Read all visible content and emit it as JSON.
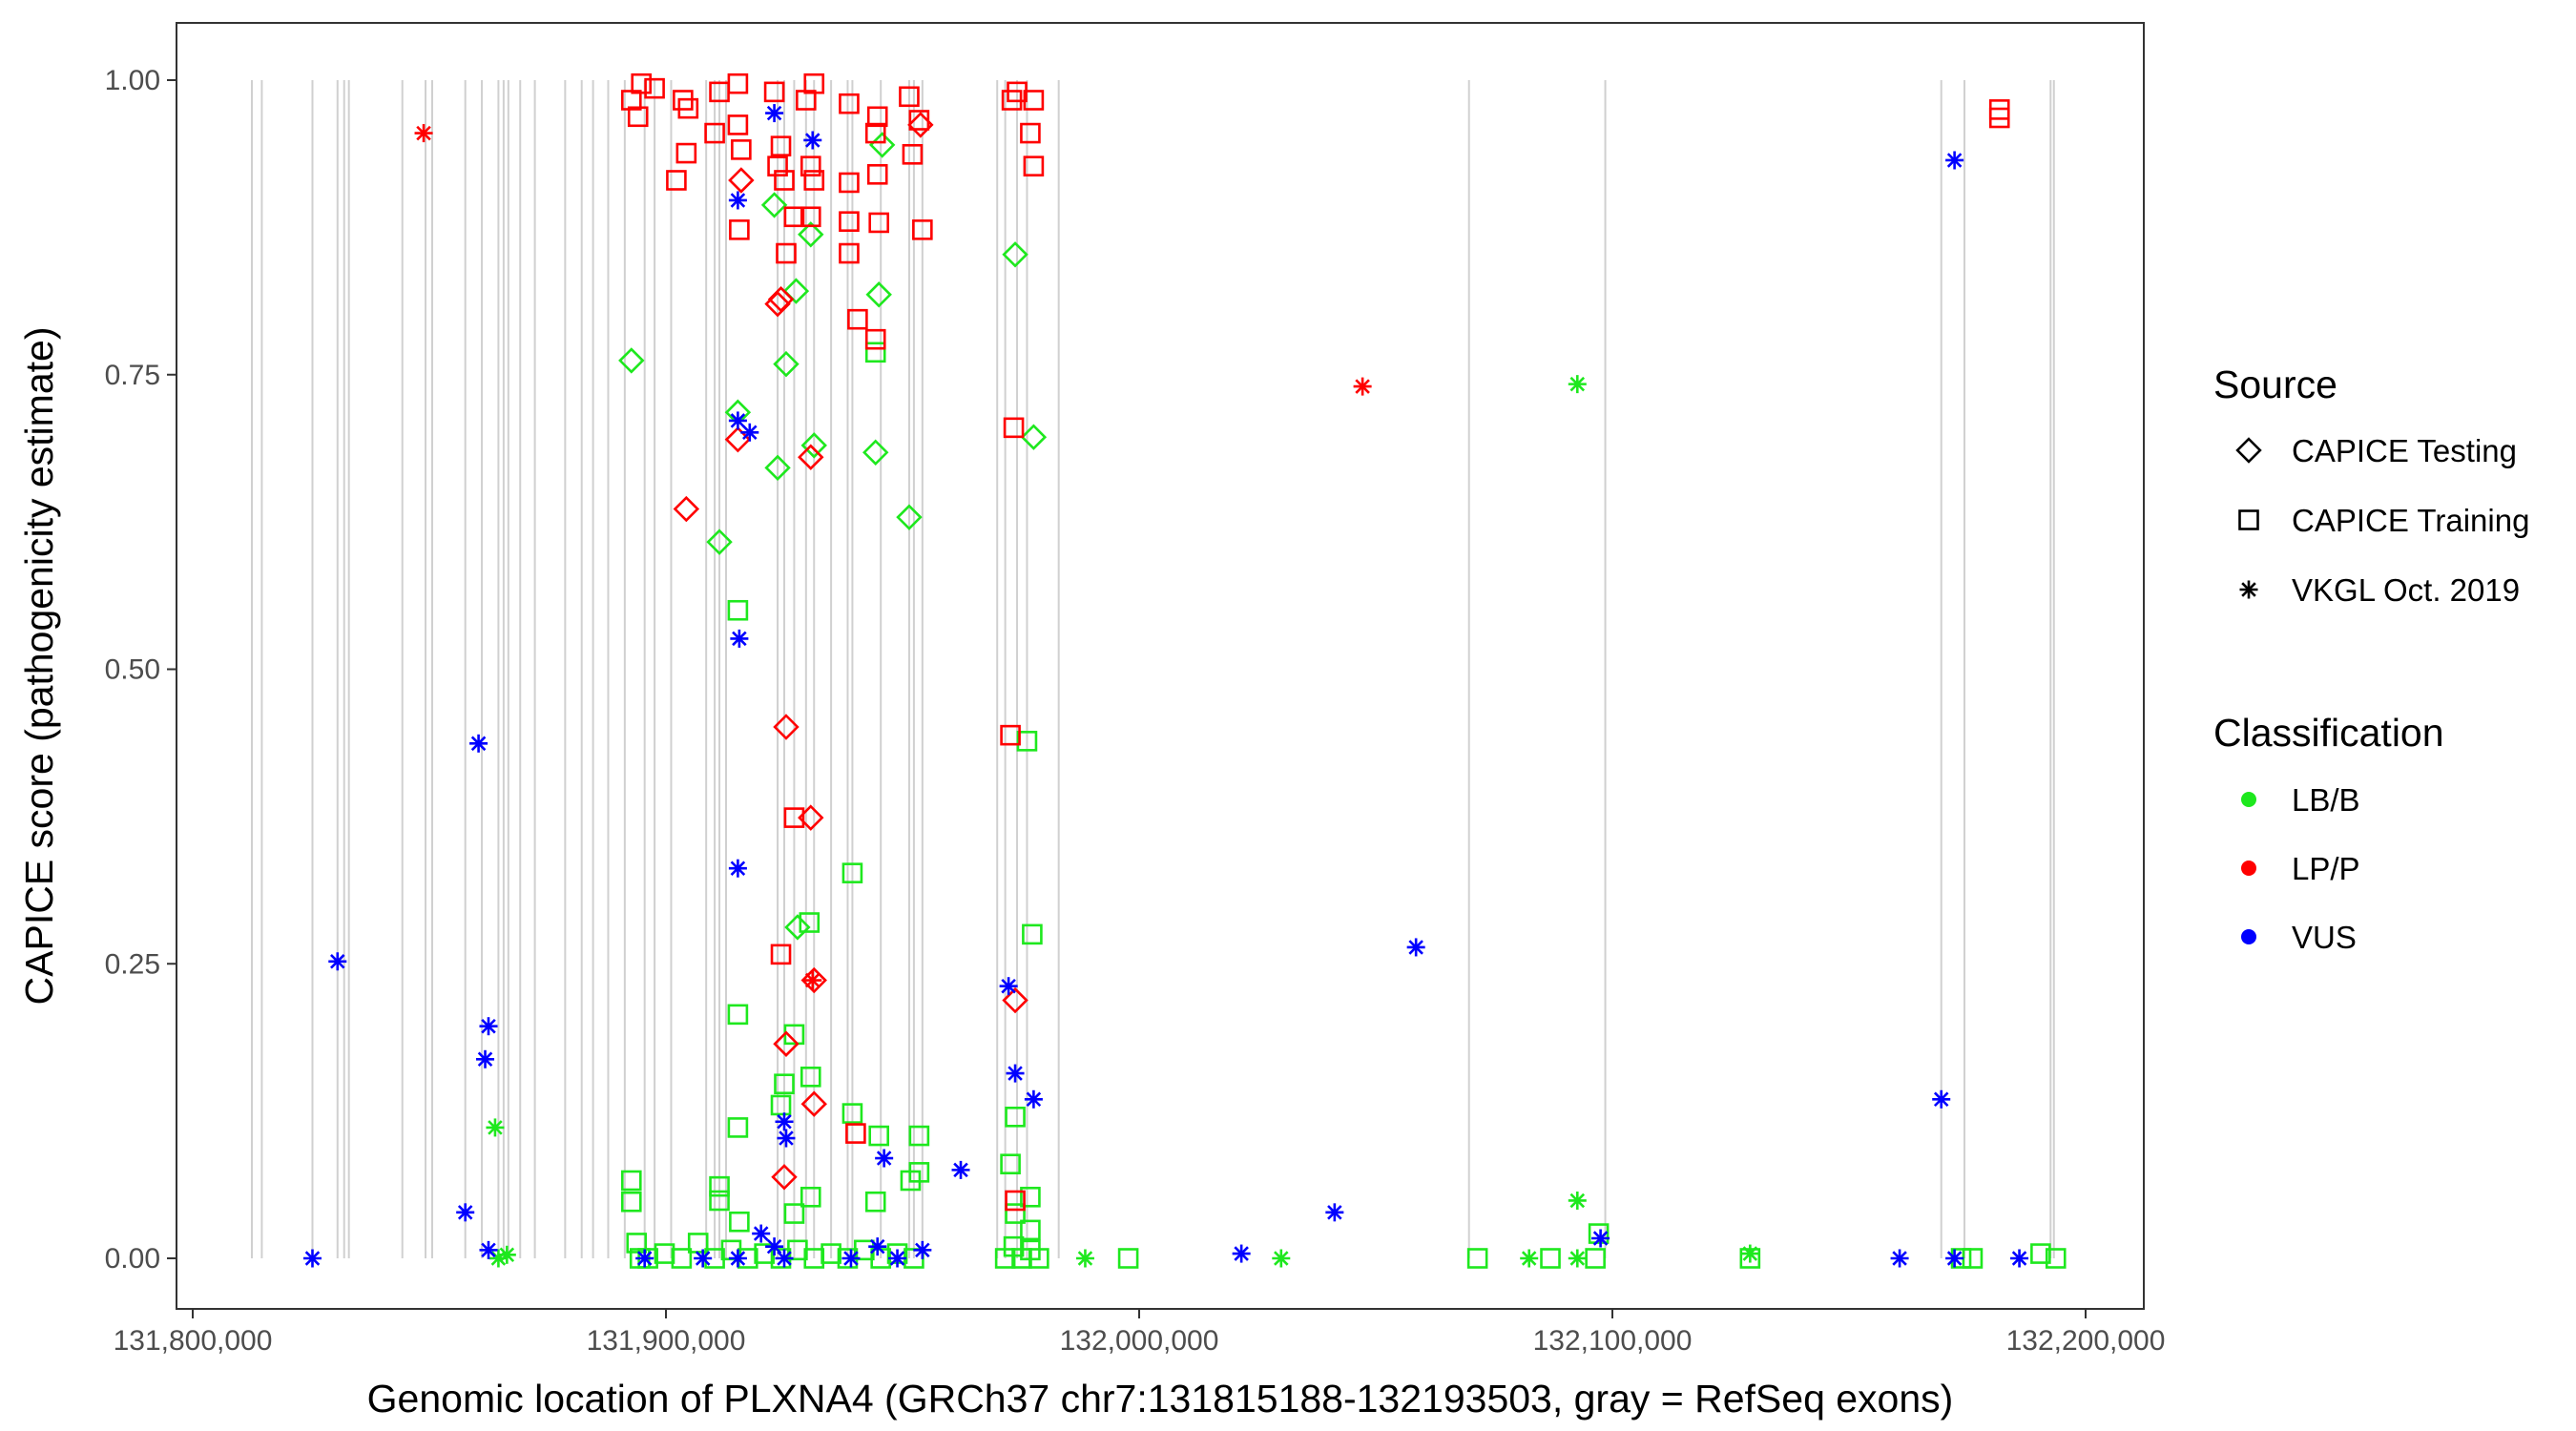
{
  "chart_data": {
    "type": "scatter",
    "title": "",
    "xlabel": "Genomic location of PLXNA4 (GRCh37 chr7:131815188-132193503, gray = RefSeq exons)",
    "ylabel": "CAPICE score (pathogenicity estimate)",
    "xlim": [
      131797000,
      132211000
    ],
    "ylim": [
      -0.045,
      1.048
    ],
    "x_ticks": [
      131800000,
      131900000,
      132000000,
      132100000,
      132200000
    ],
    "x_tick_labels": [
      "131,800,000",
      "131,900,000",
      "132,000,000",
      "132,100,000",
      "132,200,000"
    ],
    "y_ticks": [
      0,
      0.25,
      0.5,
      0.75,
      1.0
    ],
    "y_tick_labels": [
      "0.00",
      "0.25",
      "0.50",
      "0.75",
      "1.00"
    ],
    "grid": false,
    "legend": {
      "placement": "right",
      "source_title": "Source",
      "source_items": [
        "CAPICE Testing",
        "CAPICE Training",
        "VKGL Oct. 2019"
      ],
      "source_shapes": [
        "diamond",
        "square",
        "asterisk"
      ],
      "class_title": "Classification",
      "class_items": [
        "LB/B",
        "LP/P",
        "VUS"
      ],
      "class_colors": [
        "#1ee81e",
        "#ff0000",
        "#0000ff"
      ]
    },
    "exons_kb": [
      131812.5,
      131814.6,
      131825.3,
      131830.6,
      131832.0,
      131833.0,
      131844.3,
      131849.2,
      131850.6,
      131857.6,
      131861.1,
      131864.6,
      131865.7,
      131866.7,
      131869.2,
      131872.3,
      131878.7,
      131882.2,
      131884.6,
      131887.8,
      131891.3,
      131895.5,
      131897.6,
      131901.1,
      131908.5,
      131910.3,
      131911.3,
      131912.7,
      131923.6,
      131925.0,
      131927.1,
      131929.6,
      131931.3,
      131934.9,
      131938.4,
      131939.4,
      131945.4,
      131951.4,
      131952.4,
      131954.2,
      131970.0,
      131971.7,
      131974.2,
      131976.3,
      131983.0,
      132069.7,
      132098.5,
      132169.5,
      132174.4,
      132192.6,
      132193.3
    ],
    "point_fields": [
      "x_kb",
      "y",
      "source_index",
      "class_index"
    ],
    "points": [
      [
        131825.3,
        0,
        2,
        2
      ],
      [
        131830.6,
        0.252,
        2,
        2
      ],
      [
        131860.4,
        0.437,
        2,
        2
      ],
      [
        131862.5,
        0.197,
        2,
        2
      ],
      [
        131861.8,
        0.169,
        2,
        2
      ],
      [
        131857.6,
        0.039,
        2,
        2
      ],
      [
        131862.5,
        0.007,
        2,
        2
      ],
      [
        131895.5,
        0,
        2,
        2
      ],
      [
        131907.8,
        0,
        2,
        2
      ],
      [
        131915.2,
        0,
        2,
        2
      ],
      [
        131915.2,
        0.898,
        2,
        2
      ],
      [
        131915.2,
        0.331,
        2,
        2
      ],
      [
        131915.5,
        0.526,
        2,
        2
      ],
      [
        131915.2,
        0.711,
        2,
        2
      ],
      [
        131917.7,
        0.701,
        2,
        2
      ],
      [
        131922.9,
        0.972,
        2,
        2
      ],
      [
        131931.0,
        0.949,
        2,
        2
      ],
      [
        131925.0,
        0.116,
        2,
        2
      ],
      [
        131925.4,
        0.102,
        2,
        2
      ],
      [
        131920.1,
        0.021,
        2,
        2
      ],
      [
        131922.9,
        0.01,
        2,
        2
      ],
      [
        131925.0,
        0,
        2,
        2
      ],
      [
        131939.1,
        0,
        2,
        2
      ],
      [
        131948.9,
        0,
        2,
        2
      ],
      [
        131944.7,
        0.01,
        2,
        2
      ],
      [
        131946.1,
        0.085,
        2,
        2
      ],
      [
        131954.2,
        0.007,
        2,
        2
      ],
      [
        131962.3,
        0.075,
        2,
        2
      ],
      [
        131972.4,
        0.231,
        2,
        2
      ],
      [
        131973.8,
        0.157,
        2,
        2
      ],
      [
        131977.7,
        0.135,
        2,
        2
      ],
      [
        132021.6,
        0.004,
        2,
        2
      ],
      [
        132041.3,
        0.039,
        2,
        2
      ],
      [
        132058.5,
        0.264,
        2,
        2
      ],
      [
        132097.5,
        0.017,
        2,
        2
      ],
      [
        132160.7,
        0,
        2,
        2
      ],
      [
        132169.5,
        0.135,
        2,
        2
      ],
      [
        132172.3,
        0.932,
        2,
        2
      ],
      [
        132172.3,
        0,
        2,
        2
      ],
      [
        132186.0,
        0,
        2,
        2
      ],
      [
        131848.8,
        0.955,
        2,
        1
      ],
      [
        132047.2,
        0.74,
        2,
        1
      ],
      [
        131931.0,
        0.236,
        2,
        1
      ],
      [
        131863.9,
        0.111,
        2,
        0
      ],
      [
        132092.6,
        0.742,
        2,
        0
      ],
      [
        132092.6,
        0.049,
        2,
        0
      ],
      [
        131988.6,
        0,
        2,
        0
      ],
      [
        132030.0,
        0,
        2,
        0
      ],
      [
        132082.4,
        0,
        2,
        0
      ],
      [
        132129.1,
        0.004,
        2,
        0
      ],
      [
        131864.6,
        0,
        2,
        0
      ],
      [
        131866.4,
        0.003,
        2,
        0
      ],
      [
        132092.6,
        0,
        2,
        0
      ],
      [
        131892.7,
        0.762,
        0,
        0
      ],
      [
        131911.3,
        0.608,
        0,
        0
      ],
      [
        131915.2,
        0.718,
        0,
        0
      ],
      [
        131922.9,
        0.894,
        0,
        0
      ],
      [
        131923.6,
        0.671,
        0,
        0
      ],
      [
        131925.4,
        0.759,
        0,
        0
      ],
      [
        131927.5,
        0.821,
        0,
        0
      ],
      [
        131930.6,
        0.869,
        0,
        0
      ],
      [
        131931.3,
        0.69,
        0,
        0
      ],
      [
        131944.3,
        0.684,
        0,
        0
      ],
      [
        131945.0,
        0.818,
        0,
        0
      ],
      [
        131951.4,
        0.629,
        0,
        0
      ],
      [
        131973.8,
        0.852,
        0,
        0
      ],
      [
        131977.7,
        0.697,
        0,
        0
      ],
      [
        131927.8,
        0.281,
        0,
        0
      ],
      [
        131945.7,
        0.945,
        0,
        0
      ],
      [
        131904.3,
        0.636,
        0,
        1
      ],
      [
        131915.9,
        0.915,
        0,
        1
      ],
      [
        131915.2,
        0.695,
        0,
        1
      ],
      [
        131923.6,
        0.81,
        0,
        1
      ],
      [
        131924.3,
        0.814,
        0,
        1
      ],
      [
        131925.4,
        0.451,
        0,
        1
      ],
      [
        131930.6,
        0.374,
        0,
        1
      ],
      [
        131930.6,
        0.68,
        0,
        1
      ],
      [
        131925.4,
        0.182,
        0,
        1
      ],
      [
        131931.3,
        0.131,
        0,
        1
      ],
      [
        131973.8,
        0.219,
        0,
        1
      ],
      [
        131931.3,
        0.236,
        0,
        1
      ],
      [
        131953.8,
        0.962,
        0,
        1
      ],
      [
        131925.0,
        0.069,
        0,
        1
      ],
      [
        131892.7,
        0.983,
        1,
        1
      ],
      [
        131894.1,
        0.969,
        1,
        1
      ],
      [
        131894.8,
        0.997,
        1,
        1
      ],
      [
        131897.6,
        0.993,
        1,
        1
      ],
      [
        131903.6,
        0.983,
        1,
        1
      ],
      [
        131904.7,
        0.976,
        1,
        1
      ],
      [
        131902.2,
        0.915,
        1,
        1
      ],
      [
        131904.3,
        0.938,
        1,
        1
      ],
      [
        131910.3,
        0.955,
        1,
        1
      ],
      [
        131911.3,
        0.99,
        1,
        1
      ],
      [
        131915.2,
        0.997,
        1,
        1
      ],
      [
        131915.2,
        0.962,
        1,
        1
      ],
      [
        131915.5,
        0.873,
        1,
        1
      ],
      [
        131915.9,
        0.941,
        1,
        1
      ],
      [
        131922.9,
        0.99,
        1,
        1
      ],
      [
        131923.6,
        0.927,
        1,
        1
      ],
      [
        131924.3,
        0.944,
        1,
        1
      ],
      [
        131925.0,
        0.915,
        1,
        1
      ],
      [
        131925.4,
        0.853,
        1,
        1
      ],
      [
        131927.1,
        0.884,
        1,
        1
      ],
      [
        131929.6,
        0.983,
        1,
        1
      ],
      [
        131930.6,
        0.927,
        1,
        1
      ],
      [
        131930.6,
        0.884,
        1,
        1
      ],
      [
        131931.3,
        0.997,
        1,
        1
      ],
      [
        131931.3,
        0.915,
        1,
        1
      ],
      [
        131938.7,
        0.98,
        1,
        1
      ],
      [
        131938.7,
        0.913,
        1,
        1
      ],
      [
        131938.7,
        0.88,
        1,
        1
      ],
      [
        131938.7,
        0.853,
        1,
        1
      ],
      [
        131940.5,
        0.797,
        1,
        1
      ],
      [
        131944.7,
        0.969,
        1,
        1
      ],
      [
        131944.3,
        0.955,
        1,
        1
      ],
      [
        131944.7,
        0.92,
        1,
        1
      ],
      [
        131945.0,
        0.879,
        1,
        1
      ],
      [
        131944.3,
        0.78,
        1,
        1
      ],
      [
        131951.4,
        0.986,
        1,
        1
      ],
      [
        131952.1,
        0.937,
        1,
        1
      ],
      [
        131953.5,
        0.966,
        1,
        1
      ],
      [
        131954.2,
        0.873,
        1,
        1
      ],
      [
        131973.1,
        0.983,
        1,
        1
      ],
      [
        131974.2,
        0.99,
        1,
        1
      ],
      [
        131977.0,
        0.955,
        1,
        1
      ],
      [
        131977.7,
        0.927,
        1,
        1
      ],
      [
        131977.7,
        0.983,
        1,
        1
      ],
      [
        131973.5,
        0.705,
        1,
        1
      ],
      [
        131972.8,
        0.444,
        1,
        1
      ],
      [
        131927.1,
        0.374,
        1,
        1
      ],
      [
        131924.3,
        0.258,
        1,
        1
      ],
      [
        131940.1,
        0.106,
        1,
        1
      ],
      [
        132181.8,
        0.975,
        1,
        1
      ],
      [
        132181.8,
        0.968,
        1,
        1
      ],
      [
        131973.8,
        0.049,
        1,
        1
      ],
      [
        131892.7,
        0.066,
        1,
        0
      ],
      [
        131892.7,
        0.048,
        1,
        0
      ],
      [
        131893.8,
        0.013,
        1,
        0
      ],
      [
        131894.5,
        0,
        1,
        0
      ],
      [
        131915.2,
        0.55,
        1,
        0
      ],
      [
        131915.2,
        0.111,
        1,
        0
      ],
      [
        131915.2,
        0.207,
        1,
        0
      ],
      [
        131911.3,
        0.061,
        1,
        0
      ],
      [
        131911.3,
        0.049,
        1,
        0
      ],
      [
        131915.5,
        0.031,
        1,
        0
      ],
      [
        131924.3,
        0.13,
        1,
        0
      ],
      [
        131925.0,
        0.148,
        1,
        0
      ],
      [
        131927.1,
        0.19,
        1,
        0
      ],
      [
        131930.3,
        0.285,
        1,
        0
      ],
      [
        131930.6,
        0.154,
        1,
        0
      ],
      [
        131939.4,
        0.327,
        1,
        0
      ],
      [
        131939.4,
        0.123,
        1,
        0
      ],
      [
        131945.0,
        0.104,
        1,
        0
      ],
      [
        131953.5,
        0.104,
        1,
        0
      ],
      [
        131951.7,
        0.066,
        1,
        0
      ],
      [
        131953.5,
        0.073,
        1,
        0
      ],
      [
        131977.4,
        0.275,
        1,
        0
      ],
      [
        131976.3,
        0.439,
        1,
        0
      ],
      [
        131973.8,
        0.12,
        1,
        0
      ],
      [
        131972.8,
        0.08,
        1,
        0
      ],
      [
        131944.3,
        0.769,
        1,
        0
      ],
      [
        131930.6,
        0.052,
        1,
        0
      ],
      [
        131927.1,
        0.038,
        1,
        0
      ],
      [
        131944.3,
        0.048,
        1,
        0
      ],
      [
        131973.8,
        0.038,
        1,
        0
      ],
      [
        131977.0,
        0.052,
        1,
        0
      ],
      [
        131977.0,
        0.024,
        1,
        0
      ],
      [
        131896.2,
        0,
        1,
        0
      ],
      [
        131899.7,
        0.004,
        1,
        0
      ],
      [
        131903.3,
        0,
        1,
        0
      ],
      [
        131906.8,
        0.013,
        1,
        0
      ],
      [
        131910.3,
        0,
        1,
        0
      ],
      [
        131913.8,
        0.007,
        1,
        0
      ],
      [
        131917.3,
        0,
        1,
        0
      ],
      [
        131920.8,
        0.004,
        1,
        0
      ],
      [
        131924.3,
        0,
        1,
        0
      ],
      [
        131927.8,
        0.007,
        1,
        0
      ],
      [
        131931.3,
        0,
        1,
        0
      ],
      [
        131934.9,
        0.004,
        1,
        0
      ],
      [
        131938.4,
        0,
        1,
        0
      ],
      [
        131941.9,
        0.007,
        1,
        0
      ],
      [
        131945.4,
        0,
        1,
        0
      ],
      [
        131948.9,
        0.004,
        1,
        0
      ],
      [
        131952.4,
        0,
        1,
        0
      ],
      [
        131971.7,
        0,
        1,
        0
      ],
      [
        131973.5,
        0.01,
        1,
        0
      ],
      [
        131975.2,
        0,
        1,
        0
      ],
      [
        131977.0,
        0.007,
        1,
        0
      ],
      [
        131978.8,
        0,
        1,
        0
      ],
      [
        131997.7,
        0,
        1,
        0
      ],
      [
        132071.5,
        0,
        1,
        0
      ],
      [
        132086.9,
        0,
        1,
        0
      ],
      [
        132096.4,
        0,
        1,
        0
      ],
      [
        132097.1,
        0.021,
        1,
        0
      ],
      [
        132129.1,
        0,
        1,
        0
      ],
      [
        132173.7,
        0,
        1,
        0
      ],
      [
        132176.1,
        0,
        1,
        0
      ],
      [
        132190.5,
        0.004,
        1,
        0
      ],
      [
        132193.7,
        0,
        1,
        0
      ]
    ]
  }
}
